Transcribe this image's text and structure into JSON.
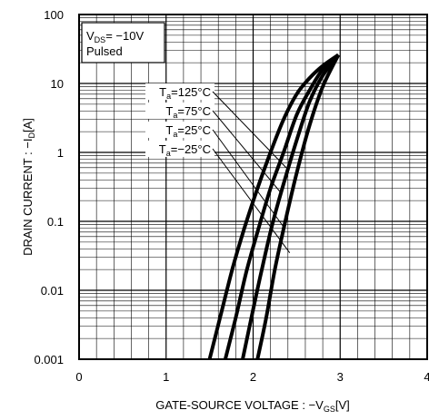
{
  "chart_data": {
    "type": "line",
    "xlabel": {
      "prefix": "GATE-SOURCE VOLTAGE : −V",
      "sub": "GS",
      "suffix": "[V]"
    },
    "ylabel": {
      "prefix": "DRAIN CURRENT : −I",
      "sub": "D",
      "suffix": "[A]"
    },
    "xlim": [
      0,
      4
    ],
    "ylim": [
      0.001,
      100
    ],
    "yscale": "log",
    "x_ticks": [
      "0",
      "1",
      "2",
      "3",
      "4"
    ],
    "y_ticks": [
      "0.001",
      "0.01",
      "0.1",
      "1",
      "10",
      "100"
    ],
    "grid": true,
    "conditions": {
      "vds": {
        "prefix": "V",
        "sub": "DS",
        "suffix": "= −10V"
      },
      "mode": "Pulsed"
    },
    "series": [
      {
        "name": "Ta=125°C",
        "label": {
          "prefix": "T",
          "sub": "a",
          "suffix": "=125°C"
        },
        "x": [
          1.5,
          1.62,
          1.76,
          1.9,
          2.05,
          2.2,
          2.35,
          2.5,
          2.65,
          2.8,
          2.98
        ],
        "y": [
          0.001,
          0.004,
          0.02,
          0.08,
          0.3,
          1.0,
          3.0,
          7.0,
          12.0,
          18.0,
          26.0
        ]
      },
      {
        "name": "Ta=75°C",
        "label": {
          "prefix": "T",
          "sub": "a",
          "suffix": "=75°C"
        },
        "x": [
          1.68,
          1.8,
          1.92,
          2.05,
          2.2,
          2.35,
          2.5,
          2.65,
          2.8,
          2.98
        ],
        "y": [
          0.001,
          0.004,
          0.018,
          0.07,
          0.3,
          1.0,
          3.5,
          8.0,
          16.0,
          26.0
        ]
      },
      {
        "name": "Ta=25°C",
        "label": {
          "prefix": "T",
          "sub": "a",
          "suffix": "=25°C"
        },
        "x": [
          1.88,
          1.98,
          2.1,
          2.22,
          2.35,
          2.5,
          2.65,
          2.8,
          2.98
        ],
        "y": [
          0.001,
          0.004,
          0.02,
          0.09,
          0.35,
          1.5,
          5.5,
          13.0,
          26.0
        ]
      },
      {
        "name": "Ta=−25°C",
        "label": {
          "prefix": "T",
          "sub": "a",
          "suffix": "=−25°C"
        },
        "x": [
          2.05,
          2.15,
          2.25,
          2.37,
          2.5,
          2.65,
          2.8,
          2.98
        ],
        "y": [
          0.001,
          0.004,
          0.02,
          0.1,
          0.5,
          2.5,
          9.0,
          26.0
        ]
      }
    ],
    "annotation_targets": [
      {
        "x": 2.38,
        "y": 0.6
      },
      {
        "x": 2.33,
        "y": 0.25
      },
      {
        "x": 2.36,
        "y": 0.08
      },
      {
        "x": 2.42,
        "y": 0.035
      }
    ]
  }
}
